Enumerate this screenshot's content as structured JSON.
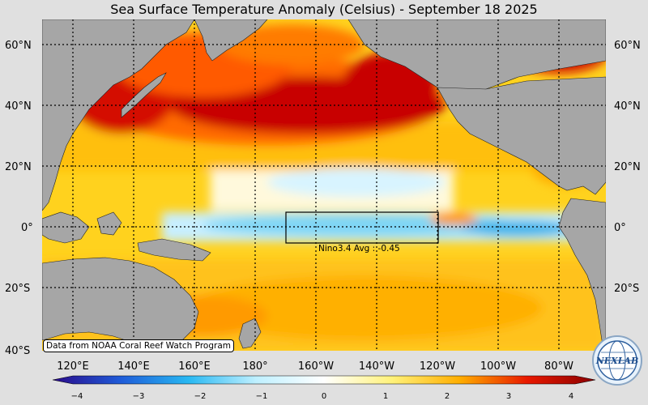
{
  "title": "Sea Surface Temperature Anomaly (Celsius) - September 18 2025",
  "lat_labels": [
    "60°N",
    "40°N",
    "20°N",
    "0°",
    "20°S",
    "40°S"
  ],
  "lon_labels": [
    "120°E",
    "140°E",
    "160°E",
    "180°",
    "160°W",
    "140°W",
    "120°W",
    "100°W",
    "80°W"
  ],
  "region": {
    "name": "Nino3.4",
    "label": "Nino3.4 Avg : -0.45",
    "lon_range": [
      "170°W",
      "120°W"
    ],
    "lat_range": [
      "5°S",
      "5°N"
    ],
    "avg": -0.45
  },
  "source_note": "Data from NOAA Coral Reef Watch Program",
  "logo": {
    "text": "NEXLAB",
    "icon": "globe-logo-icon"
  },
  "colorbar": {
    "ticks": [
      "−4",
      "−3",
      "−2",
      "−1",
      "0",
      "1",
      "2",
      "3",
      "4"
    ],
    "range": [
      -4,
      4
    ],
    "colors": [
      "#2a0a8a",
      "#1f5bd8",
      "#28b8f2",
      "#bff0ff",
      "#ffffff",
      "#fff27a",
      "#ffae00",
      "#e81800",
      "#8a0000"
    ]
  },
  "colors": {
    "land": "#a6a6a6",
    "warm": "#ffd21e",
    "hot": "#ff6a00",
    "very_hot": "#c80000",
    "neutral": "#fff9dc",
    "cool": "#a8e6f8",
    "cold": "#3fb4ea"
  }
}
